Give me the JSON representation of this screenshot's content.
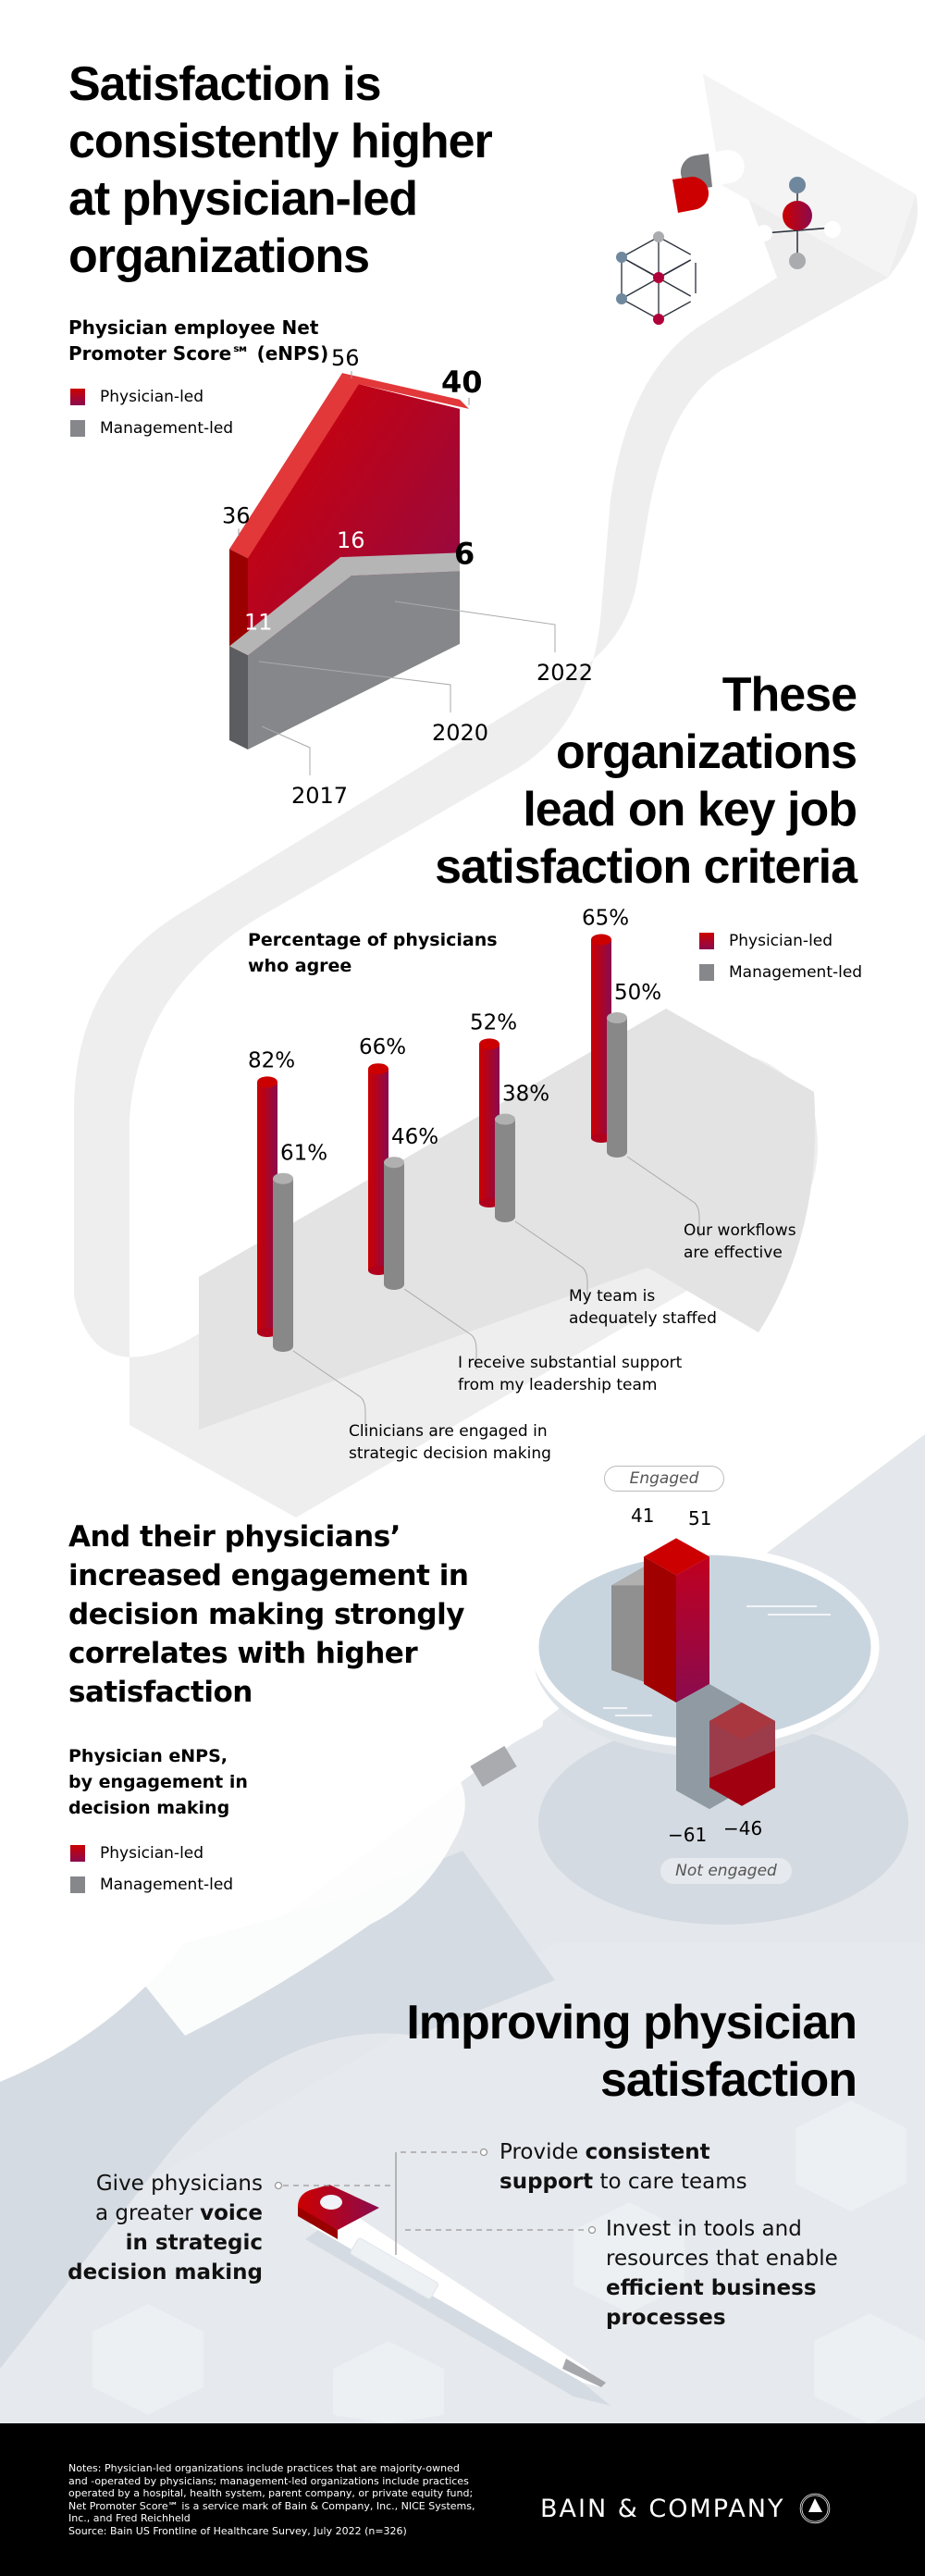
{
  "colors": {
    "physician_led": "#cc0000",
    "physician_led_dark": "#8a0b4e",
    "management_led": "#86878b",
    "background_band": "#e6e9ed",
    "footer_bg": "#000000"
  },
  "section1": {
    "title_lines": [
      "Satisfaction is",
      "consistently higher",
      "at physician-led",
      "organizations"
    ],
    "subtitle_lines": [
      "Physician employee Net",
      "Promoter Score℠ (eNPS)"
    ],
    "legend": [
      {
        "label": "Physician-led",
        "color": "#cc0000"
      },
      {
        "label": "Management-led",
        "color": "#86878b"
      }
    ]
  },
  "section2": {
    "title_lines": [
      "These",
      "organizations",
      "lead on key job",
      "satisfaction criteria"
    ],
    "subtitle_lines": [
      "Percentage of physicians",
      "who agree"
    ],
    "legend": [
      {
        "label": "Physician-led",
        "color": "#cc0000"
      },
      {
        "label": "Management-led",
        "color": "#86878b"
      }
    ],
    "category_labels": [
      [
        "Clinicians are engaged in",
        "strategic decision making"
      ],
      [
        "I receive substantial support",
        "from my leadership team"
      ],
      [
        "My team is",
        "adequately staffed"
      ],
      [
        "Our workflows",
        "are effective"
      ]
    ]
  },
  "section3": {
    "title_lines": [
      "And their physicians’",
      "increased engagement in",
      "decision making strongly",
      "correlates with higher",
      "satisfaction"
    ],
    "subtitle_lines": [
      "Physician eNPS,",
      "by engagement in",
      "decision making"
    ],
    "legend": [
      {
        "label": "Physician-led",
        "color": "#cc0000"
      },
      {
        "label": "Management-led",
        "color": "#86878b"
      }
    ],
    "engaged_label": "Engaged",
    "not_engaged_label": "Not engaged"
  },
  "section4": {
    "title_lines": [
      "Improving physician",
      "satisfaction"
    ],
    "tips": [
      {
        "parts": [
          {
            "t": "Give physicians",
            "b": false
          },
          {
            "t": "a greater ",
            "b": false
          },
          {
            "t": "voice",
            "b": true
          },
          {
            "t": "in strategic",
            "b": true
          },
          {
            "t": "decision making",
            "b": true
          }
        ]
      },
      {
        "parts": [
          {
            "t": "Provide ",
            "b": false
          },
          {
            "t": "consistent",
            "b": true
          },
          {
            "t": "support",
            "b": true
          },
          {
            "t": " to care teams",
            "b": false
          }
        ]
      },
      {
        "parts": [
          {
            "t": "Invest in tools and",
            "b": false
          },
          {
            "t": "resources that enable",
            "b": false
          },
          {
            "t": "efficient business",
            "b": true
          },
          {
            "t": "processes",
            "b": true
          }
        ]
      }
    ]
  },
  "footer": {
    "notes_lines": [
      "Notes: Physician-led organizations include practices that are majority-owned",
      "and -operated by physicians; management-led organizations include practices",
      "operated by a hospital, health system, parent company, or private equity fund;",
      "Net Promoter Score℠ is a service mark of Bain & Company, Inc., NICE Systems,",
      "Inc., and Fred Reichheld",
      "Source: Bain US Frontline of Healthcare Survey, July 2022 (n=326)"
    ],
    "brand": "BAIN & COMPANY",
    "brand_icon": "compass-logo-icon"
  },
  "chart_data": [
    {
      "type": "area",
      "title": "Physician employee Net Promoter Score (eNPS)",
      "x": [
        "2017",
        "2020",
        "2022"
      ],
      "series": [
        {
          "name": "Physician-led",
          "values": [
            36,
            56,
            40
          ]
        },
        {
          "name": "Management-led",
          "values": [
            11,
            16,
            6
          ]
        }
      ],
      "xlabel": "",
      "ylabel": "eNPS",
      "highlight_last": true,
      "legend": "top-left"
    },
    {
      "type": "bar",
      "title": "Percentage of physicians who agree",
      "categories": [
        "Clinicians are engaged in strategic decision making",
        "I receive substantial support from my leadership team",
        "My team is adequately staffed",
        "Our workflows are effective"
      ],
      "series": [
        {
          "name": "Physician-led",
          "values": [
            82,
            66,
            52,
            65
          ],
          "labels": [
            "82%",
            "66%",
            "52%",
            "65%"
          ]
        },
        {
          "name": "Management-led",
          "values": [
            61,
            46,
            38,
            50
          ],
          "labels": [
            "61%",
            "46%",
            "38%",
            "50%"
          ]
        }
      ],
      "unit": "%",
      "legend": "top-right"
    },
    {
      "type": "bar",
      "title": "Physician eNPS, by engagement in decision making",
      "categories": [
        "Engaged",
        "Not engaged"
      ],
      "series": [
        {
          "name": "Physician-led",
          "values": [
            51,
            -46
          ]
        },
        {
          "name": "Management-led",
          "values": [
            41,
            -61
          ]
        }
      ],
      "legend": "left"
    }
  ]
}
